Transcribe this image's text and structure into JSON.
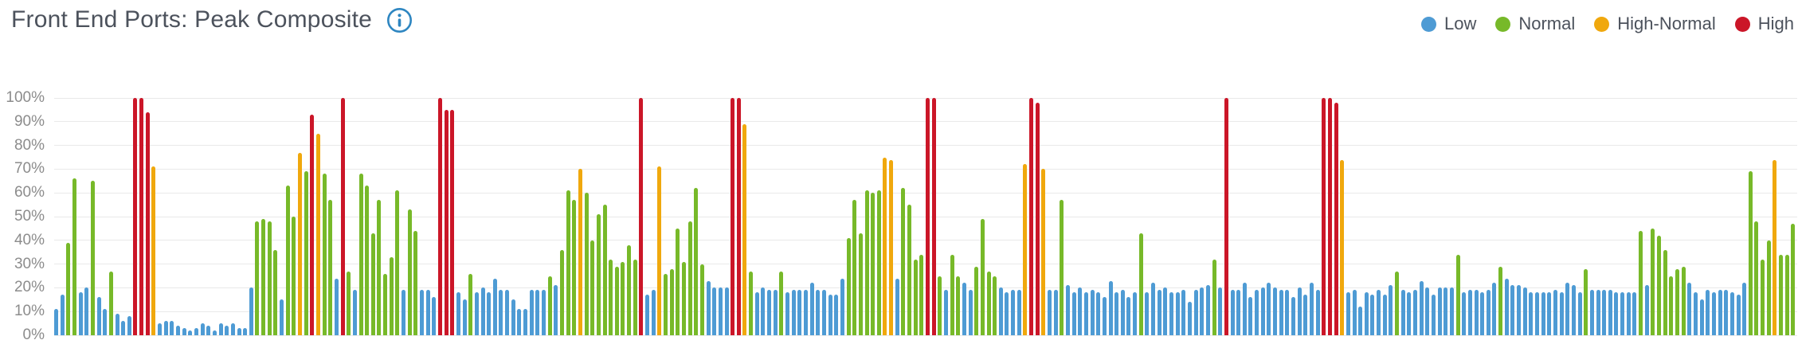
{
  "title": "Front End Ports: Peak Composite",
  "legend": {
    "items": [
      {
        "key": "L",
        "label": "Low",
        "color": "#4E9BD4"
      },
      {
        "key": "N",
        "label": "Normal",
        "color": "#77B929"
      },
      {
        "key": "HN",
        "label": "High-Normal",
        "color": "#F0A80D"
      },
      {
        "key": "H",
        "label": "High",
        "color": "#CB1628"
      }
    ]
  },
  "chart_data": {
    "type": "bar",
    "title": "Front End Ports: Peak Composite",
    "xlabel": "",
    "ylabel": "",
    "ylim": [
      0,
      100
    ],
    "yticks": [
      "100%",
      "90%",
      "80%",
      "70%",
      "60%",
      "50%",
      "40%",
      "30%",
      "20%",
      "10%",
      "0%"
    ],
    "grid": true,
    "legend_position": "top-right",
    "series_key": {
      "L": "Low",
      "N": "Normal",
      "HN": "High-Normal",
      "H": "High"
    },
    "colors": {
      "L": "#4E9BD4",
      "N": "#77B929",
      "HN": "#F0A80D",
      "H": "#CB1628"
    },
    "bars": [
      [
        11,
        "L"
      ],
      [
        17,
        "L"
      ],
      [
        39,
        "N"
      ],
      [
        66,
        "N"
      ],
      [
        18,
        "L"
      ],
      [
        20,
        "L"
      ],
      [
        65,
        "N"
      ],
      [
        16,
        "L"
      ],
      [
        11,
        "L"
      ],
      [
        27,
        "N"
      ],
      [
        9,
        "L"
      ],
      [
        6,
        "L"
      ],
      [
        8,
        "L"
      ],
      [
        100,
        "H"
      ],
      [
        100,
        "H"
      ],
      [
        94,
        "H"
      ],
      [
        71,
        "HN"
      ],
      [
        5,
        "L"
      ],
      [
        6,
        "L"
      ],
      [
        6,
        "L"
      ],
      [
        4,
        "L"
      ],
      [
        3,
        "L"
      ],
      [
        2,
        "L"
      ],
      [
        3,
        "L"
      ],
      [
        5,
        "L"
      ],
      [
        4,
        "L"
      ],
      [
        2,
        "L"
      ],
      [
        5,
        "L"
      ],
      [
        4,
        "L"
      ],
      [
        5,
        "L"
      ],
      [
        3,
        "L"
      ],
      [
        3,
        "L"
      ],
      [
        20,
        "L"
      ],
      [
        48,
        "N"
      ],
      [
        49,
        "N"
      ],
      [
        48,
        "N"
      ],
      [
        36,
        "N"
      ],
      [
        15,
        "L"
      ],
      [
        63,
        "N"
      ],
      [
        50,
        "N"
      ],
      [
        77,
        "HN"
      ],
      [
        69,
        "N"
      ],
      [
        93,
        "H"
      ],
      [
        85,
        "HN"
      ],
      [
        68,
        "N"
      ],
      [
        57,
        "N"
      ],
      [
        24,
        "L"
      ],
      [
        100,
        "H"
      ],
      [
        27,
        "N"
      ],
      [
        19,
        "L"
      ],
      [
        68,
        "N"
      ],
      [
        63,
        "N"
      ],
      [
        43,
        "N"
      ],
      [
        57,
        "N"
      ],
      [
        26,
        "N"
      ],
      [
        33,
        "N"
      ],
      [
        61,
        "N"
      ],
      [
        19,
        "L"
      ],
      [
        53,
        "N"
      ],
      [
        44,
        "N"
      ],
      [
        19,
        "L"
      ],
      [
        19,
        "L"
      ],
      [
        16,
        "L"
      ],
      [
        100,
        "H"
      ],
      [
        95,
        "H"
      ],
      [
        95,
        "H"
      ],
      [
        18,
        "L"
      ],
      [
        15,
        "L"
      ],
      [
        26,
        "N"
      ],
      [
        18,
        "L"
      ],
      [
        20,
        "L"
      ],
      [
        18,
        "L"
      ],
      [
        24,
        "L"
      ],
      [
        19,
        "L"
      ],
      [
        19,
        "L"
      ],
      [
        15,
        "L"
      ],
      [
        11,
        "L"
      ],
      [
        11,
        "L"
      ],
      [
        19,
        "L"
      ],
      [
        19,
        "L"
      ],
      [
        19,
        "L"
      ],
      [
        25,
        "N"
      ],
      [
        21,
        "L"
      ],
      [
        36,
        "N"
      ],
      [
        61,
        "N"
      ],
      [
        57,
        "N"
      ],
      [
        70,
        "HN"
      ],
      [
        60,
        "N"
      ],
      [
        40,
        "N"
      ],
      [
        51,
        "N"
      ],
      [
        55,
        "N"
      ],
      [
        32,
        "N"
      ],
      [
        29,
        "N"
      ],
      [
        31,
        "N"
      ],
      [
        38,
        "N"
      ],
      [
        32,
        "N"
      ],
      [
        100,
        "H"
      ],
      [
        17,
        "L"
      ],
      [
        19,
        "L"
      ],
      [
        71,
        "HN"
      ],
      [
        26,
        "N"
      ],
      [
        28,
        "N"
      ],
      [
        45,
        "N"
      ],
      [
        31,
        "N"
      ],
      [
        48,
        "N"
      ],
      [
        62,
        "N"
      ],
      [
        30,
        "N"
      ],
      [
        23,
        "L"
      ],
      [
        20,
        "L"
      ],
      [
        20,
        "L"
      ],
      [
        20,
        "L"
      ],
      [
        100,
        "H"
      ],
      [
        100,
        "H"
      ],
      [
        89,
        "HN"
      ],
      [
        27,
        "N"
      ],
      [
        18,
        "L"
      ],
      [
        20,
        "L"
      ],
      [
        19,
        "L"
      ],
      [
        19,
        "L"
      ],
      [
        27,
        "N"
      ],
      [
        18,
        "L"
      ],
      [
        19,
        "L"
      ],
      [
        19,
        "L"
      ],
      [
        19,
        "L"
      ],
      [
        22,
        "L"
      ],
      [
        19,
        "L"
      ],
      [
        19,
        "L"
      ],
      [
        17,
        "L"
      ],
      [
        17,
        "L"
      ],
      [
        24,
        "L"
      ],
      [
        41,
        "N"
      ],
      [
        57,
        "N"
      ],
      [
        43,
        "N"
      ],
      [
        61,
        "N"
      ],
      [
        60,
        "N"
      ],
      [
        61,
        "N"
      ],
      [
        75,
        "HN"
      ],
      [
        74,
        "HN"
      ],
      [
        24,
        "L"
      ],
      [
        62,
        "N"
      ],
      [
        55,
        "N"
      ],
      [
        32,
        "N"
      ],
      [
        34,
        "N"
      ],
      [
        100,
        "H"
      ],
      [
        100,
        "H"
      ],
      [
        25,
        "N"
      ],
      [
        19,
        "L"
      ],
      [
        34,
        "N"
      ],
      [
        25,
        "N"
      ],
      [
        22,
        "L"
      ],
      [
        19,
        "L"
      ],
      [
        29,
        "N"
      ],
      [
        49,
        "N"
      ],
      [
        27,
        "N"
      ],
      [
        25,
        "N"
      ],
      [
        20,
        "L"
      ],
      [
        18,
        "L"
      ],
      [
        19,
        "L"
      ],
      [
        19,
        "L"
      ],
      [
        72,
        "HN"
      ],
      [
        100,
        "H"
      ],
      [
        98,
        "H"
      ],
      [
        70,
        "HN"
      ],
      [
        19,
        "L"
      ],
      [
        19,
        "L"
      ],
      [
        57,
        "N"
      ],
      [
        21,
        "L"
      ],
      [
        18,
        "L"
      ],
      [
        20,
        "L"
      ],
      [
        18,
        "L"
      ],
      [
        19,
        "L"
      ],
      [
        18,
        "L"
      ],
      [
        16,
        "L"
      ],
      [
        23,
        "L"
      ],
      [
        18,
        "L"
      ],
      [
        19,
        "L"
      ],
      [
        16,
        "L"
      ],
      [
        18,
        "L"
      ],
      [
        43,
        "N"
      ],
      [
        18,
        "L"
      ],
      [
        22,
        "L"
      ],
      [
        19,
        "L"
      ],
      [
        20,
        "L"
      ],
      [
        18,
        "L"
      ],
      [
        18,
        "L"
      ],
      [
        19,
        "L"
      ],
      [
        14,
        "L"
      ],
      [
        19,
        "L"
      ],
      [
        20,
        "L"
      ],
      [
        21,
        "L"
      ],
      [
        32,
        "N"
      ],
      [
        20,
        "L"
      ],
      [
        100,
        "H"
      ],
      [
        19,
        "L"
      ],
      [
        19,
        "L"
      ],
      [
        22,
        "L"
      ],
      [
        16,
        "L"
      ],
      [
        19,
        "L"
      ],
      [
        20,
        "L"
      ],
      [
        22,
        "L"
      ],
      [
        20,
        "L"
      ],
      [
        19,
        "L"
      ],
      [
        19,
        "L"
      ],
      [
        16,
        "L"
      ],
      [
        20,
        "L"
      ],
      [
        17,
        "L"
      ],
      [
        22,
        "L"
      ],
      [
        19,
        "L"
      ],
      [
        100,
        "H"
      ],
      [
        100,
        "H"
      ],
      [
        98,
        "H"
      ],
      [
        74,
        "HN"
      ],
      [
        18,
        "L"
      ],
      [
        19,
        "L"
      ],
      [
        12,
        "L"
      ],
      [
        18,
        "L"
      ],
      [
        17,
        "L"
      ],
      [
        19,
        "L"
      ],
      [
        17,
        "L"
      ],
      [
        21,
        "L"
      ],
      [
        27,
        "N"
      ],
      [
        19,
        "L"
      ],
      [
        18,
        "L"
      ],
      [
        19,
        "L"
      ],
      [
        23,
        "L"
      ],
      [
        20,
        "L"
      ],
      [
        17,
        "L"
      ],
      [
        20,
        "L"
      ],
      [
        20,
        "L"
      ],
      [
        20,
        "L"
      ],
      [
        34,
        "N"
      ],
      [
        18,
        "L"
      ],
      [
        19,
        "L"
      ],
      [
        19,
        "L"
      ],
      [
        18,
        "L"
      ],
      [
        19,
        "L"
      ],
      [
        22,
        "L"
      ],
      [
        29,
        "N"
      ],
      [
        24,
        "L"
      ],
      [
        21,
        "L"
      ],
      [
        21,
        "L"
      ],
      [
        20,
        "L"
      ],
      [
        18,
        "L"
      ],
      [
        18,
        "L"
      ],
      [
        18,
        "L"
      ],
      [
        18,
        "L"
      ],
      [
        19,
        "L"
      ],
      [
        18,
        "L"
      ],
      [
        22,
        "L"
      ],
      [
        21,
        "L"
      ],
      [
        18,
        "L"
      ],
      [
        28,
        "N"
      ],
      [
        19,
        "L"
      ],
      [
        19,
        "L"
      ],
      [
        19,
        "L"
      ],
      [
        19,
        "L"
      ],
      [
        18,
        "L"
      ],
      [
        18,
        "L"
      ],
      [
        18,
        "L"
      ],
      [
        18,
        "L"
      ],
      [
        44,
        "N"
      ],
      [
        21,
        "L"
      ],
      [
        45,
        "N"
      ],
      [
        42,
        "N"
      ],
      [
        36,
        "N"
      ],
      [
        25,
        "N"
      ],
      [
        28,
        "N"
      ],
      [
        29,
        "N"
      ],
      [
        22,
        "L"
      ],
      [
        18,
        "L"
      ],
      [
        15,
        "L"
      ],
      [
        19,
        "L"
      ],
      [
        18,
        "L"
      ],
      [
        19,
        "L"
      ],
      [
        19,
        "L"
      ],
      [
        18,
        "L"
      ],
      [
        17,
        "L"
      ],
      [
        22,
        "L"
      ],
      [
        69,
        "N"
      ],
      [
        48,
        "N"
      ],
      [
        32,
        "N"
      ],
      [
        40,
        "N"
      ],
      [
        74,
        "HN"
      ],
      [
        34,
        "N"
      ],
      [
        34,
        "N"
      ],
      [
        47,
        "N"
      ]
    ]
  }
}
